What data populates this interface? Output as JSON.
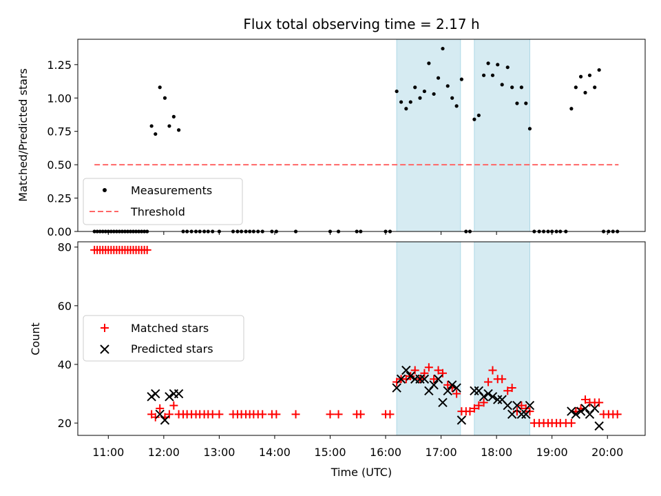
{
  "chart_data": {
    "type": "scatter",
    "title": "Flux total observing time = 2.17 h",
    "xlabel": "Time (UTC)",
    "x_ticks": [
      "11:00",
      "12:00",
      "13:00",
      "14:00",
      "15:00",
      "16:00",
      "17:00",
      "18:00",
      "19:00",
      "20:00"
    ],
    "x_range_hours": [
      10.45,
      20.68
    ],
    "shaded_intervals_hours": [
      [
        16.2,
        17.35
      ],
      [
        17.6,
        18.6
      ]
    ],
    "shade_color": "#add8e6",
    "top_panel": {
      "ylabel": "Matched/Predicted stars",
      "ylim": [
        0,
        1.44
      ],
      "y_ticks": [
        "0.00",
        "0.25",
        "0.50",
        "0.75",
        "1.00",
        "1.25"
      ],
      "y_tick_values": [
        0,
        0.25,
        0.5,
        0.75,
        1.0,
        1.25
      ],
      "legend": [
        {
          "label": "Measurements",
          "marker": "dot",
          "color": "#000000"
        },
        {
          "label": "Threshold",
          "marker": "dashed-line",
          "color": "#ff6666"
        }
      ],
      "threshold": {
        "value": 0.5,
        "x_start": 10.75,
        "x_end": 20.2
      },
      "measurements": {
        "x": [
          10.75,
          10.8,
          10.85,
          10.9,
          10.95,
          11.0,
          11.05,
          11.1,
          11.15,
          11.2,
          11.25,
          11.3,
          11.35,
          11.4,
          11.45,
          11.5,
          11.55,
          11.6,
          11.65,
          11.7,
          11.78,
          11.85,
          11.93,
          12.02,
          12.1,
          12.18,
          12.27,
          12.35,
          12.42,
          12.5,
          12.58,
          12.65,
          12.73,
          12.8,
          12.88,
          13.0,
          13.25,
          13.33,
          13.4,
          13.48,
          13.55,
          13.62,
          13.7,
          13.78,
          13.95,
          14.03,
          14.38,
          15.0,
          15.15,
          15.48,
          15.55,
          16.0,
          16.08,
          16.2,
          16.28,
          16.37,
          16.45,
          16.53,
          16.62,
          16.7,
          16.78,
          16.87,
          16.95,
          17.03,
          17.12,
          17.2,
          17.28,
          17.37,
          17.45,
          17.52,
          17.6,
          17.68,
          17.77,
          17.85,
          17.93,
          18.02,
          18.1,
          18.2,
          18.28,
          18.37,
          18.45,
          18.53,
          18.6,
          18.68,
          18.77,
          18.85,
          18.93,
          19.0,
          19.08,
          19.15,
          19.25,
          19.35,
          19.43,
          19.52,
          19.6,
          19.68,
          19.77,
          19.85,
          19.93,
          20.02,
          20.1,
          20.18
        ],
        "y": [
          0,
          0,
          0,
          0,
          0,
          0,
          0,
          0,
          0,
          0,
          0,
          0,
          0,
          0,
          0,
          0,
          0,
          0,
          0,
          0,
          0.79,
          0.73,
          1.08,
          1.0,
          0.79,
          0.86,
          0.76,
          0,
          0,
          0,
          0,
          0,
          0,
          0,
          0,
          0,
          0,
          0,
          0,
          0,
          0,
          0,
          0,
          0,
          0,
          0,
          0,
          0,
          0,
          0,
          0,
          0,
          0,
          1.05,
          0.97,
          0.92,
          0.97,
          1.08,
          1.0,
          1.05,
          1.26,
          1.03,
          1.15,
          1.37,
          1.09,
          1.0,
          0.94,
          1.14,
          0,
          0,
          0.84,
          0.87,
          1.17,
          1.26,
          1.17,
          1.25,
          1.1,
          1.23,
          1.08,
          0.96,
          1.08,
          0.96,
          0.77,
          0,
          0,
          0,
          0,
          0,
          0,
          0,
          0,
          0.92,
          1.08,
          1.16,
          1.04,
          1.17,
          1.08,
          1.21,
          0,
          0,
          0,
          0
        ]
      }
    },
    "bottom_panel": {
      "ylabel": "Count",
      "ylim": [
        15.8,
        81.8
      ],
      "y_ticks": [
        "20",
        "40",
        "60",
        "80"
      ],
      "y_tick_values": [
        20,
        40,
        60,
        80
      ],
      "legend": [
        {
          "label": "Matched stars",
          "marker": "plus",
          "color": "#ff0000"
        },
        {
          "label": "Predicted stars",
          "marker": "x",
          "color": "#000000"
        }
      ],
      "matched": {
        "x": [
          10.75,
          10.8,
          10.85,
          10.9,
          10.95,
          11.0,
          11.05,
          11.1,
          11.15,
          11.2,
          11.25,
          11.3,
          11.35,
          11.4,
          11.45,
          11.5,
          11.55,
          11.6,
          11.65,
          11.7,
          11.78,
          11.85,
          11.93,
          12.02,
          12.1,
          12.18,
          12.27,
          12.35,
          12.42,
          12.5,
          12.58,
          12.65,
          12.73,
          12.8,
          12.88,
          13.0,
          13.25,
          13.33,
          13.4,
          13.48,
          13.55,
          13.62,
          13.7,
          13.78,
          13.95,
          14.03,
          14.38,
          15.0,
          15.15,
          15.48,
          15.55,
          16.0,
          16.08,
          16.2,
          16.28,
          16.37,
          16.45,
          16.53,
          16.62,
          16.7,
          16.78,
          16.87,
          16.95,
          17.03,
          17.12,
          17.2,
          17.28,
          17.37,
          17.45,
          17.52,
          17.6,
          17.68,
          17.77,
          17.85,
          17.93,
          18.02,
          18.1,
          18.2,
          18.28,
          18.37,
          18.45,
          18.53,
          18.6,
          18.68,
          18.77,
          18.85,
          18.93,
          19.0,
          19.08,
          19.15,
          19.25,
          19.35,
          19.43,
          19.52,
          19.6,
          19.68,
          19.77,
          19.85,
          19.93,
          20.02,
          20.1,
          20.18
        ],
        "y": [
          79,
          79,
          79,
          79,
          79,
          79,
          79,
          79,
          79,
          79,
          79,
          79,
          79,
          79,
          79,
          79,
          79,
          79,
          79,
          79,
          23,
          22,
          25,
          22,
          23,
          26,
          23,
          23,
          23,
          23,
          23,
          23,
          23,
          23,
          23,
          23,
          23,
          23,
          23,
          23,
          23,
          23,
          23,
          23,
          23,
          23,
          23,
          23,
          23,
          23,
          23,
          23,
          23,
          34,
          35,
          35,
          36,
          38,
          35,
          37,
          39,
          35,
          38,
          37,
          33,
          32,
          30,
          24,
          24,
          24,
          25,
          26,
          27,
          34,
          38,
          35,
          35,
          31,
          32,
          24,
          26,
          25,
          24,
          20,
          20,
          20,
          20,
          20,
          20,
          20,
          20,
          20,
          24,
          25,
          28,
          27,
          27,
          27,
          23,
          23,
          23,
          23
        ]
      },
      "predicted": {
        "x": [
          11.78,
          11.85,
          11.93,
          12.02,
          12.1,
          12.18,
          12.27,
          16.2,
          16.28,
          16.37,
          16.45,
          16.53,
          16.62,
          16.7,
          16.78,
          16.87,
          16.95,
          17.03,
          17.12,
          17.2,
          17.28,
          17.37,
          17.6,
          17.68,
          17.77,
          17.85,
          17.93,
          18.02,
          18.1,
          18.2,
          18.28,
          18.37,
          18.45,
          18.53,
          18.6,
          19.35,
          19.43,
          19.52,
          19.6,
          19.68,
          19.77,
          19.85
        ],
        "y": [
          29,
          30,
          23,
          21,
          29,
          30,
          30,
          32,
          35,
          38,
          36,
          35,
          35,
          35,
          31,
          33,
          35,
          27,
          31,
          33,
          32,
          21,
          31,
          31,
          29,
          30,
          29,
          28,
          28,
          26,
          23,
          26,
          23,
          23,
          26,
          24,
          23,
          24,
          25,
          23,
          25,
          19
        ]
      }
    }
  }
}
